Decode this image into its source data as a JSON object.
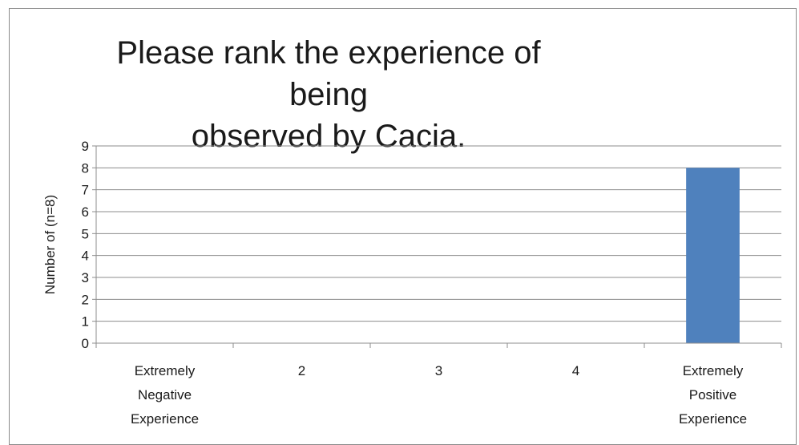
{
  "chart_data": {
    "type": "bar",
    "title": "Please rank the experience of being\nobserved by Cacia.",
    "ylabel": "Number of  (n=8)",
    "xlabel": "",
    "categories": [
      "Extremely\nNegative\nExperience",
      "2",
      "3",
      "4",
      "Extremely\nPositive\nExperience"
    ],
    "values": [
      0,
      0,
      0,
      0,
      8
    ],
    "ylim": [
      0,
      9
    ],
    "yticks": [
      0,
      1,
      2,
      3,
      4,
      5,
      6,
      7,
      8,
      9
    ],
    "grid": true,
    "legend": "none",
    "bar_color": "#4f81bd",
    "grid_color": "#8c8c8c",
    "axis_color": "#8c8c8c",
    "text_color": "#1a1a1a"
  }
}
